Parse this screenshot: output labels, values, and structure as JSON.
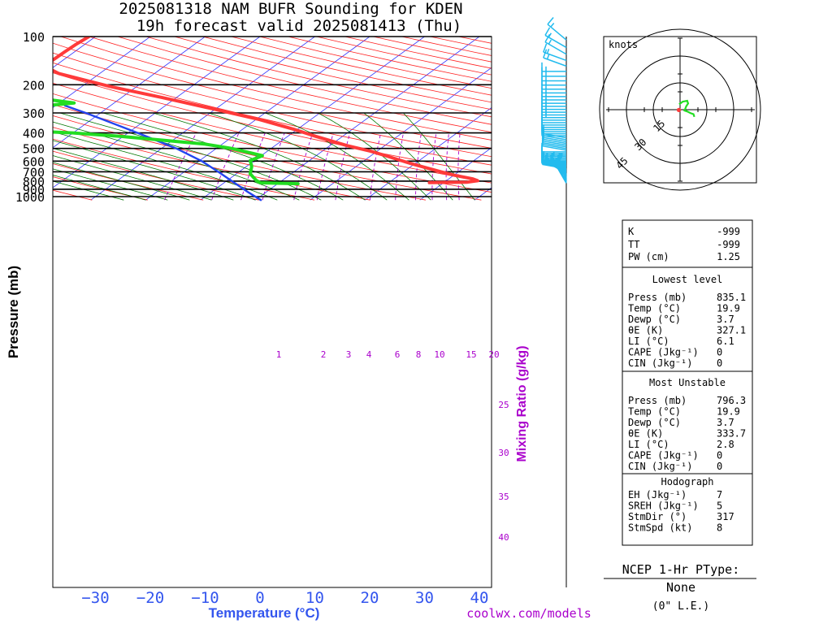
{
  "title_line1": "2025081318 NAM BUFR Sounding for KDEN",
  "title_line2": "19h forecast valid 2025081413 (Thu)",
  "footer_url": "coolwx.com/models",
  "colors": {
    "temperature": "#ff3a3a",
    "dewpoint": "#22dd22",
    "isotherm": "#3333ff",
    "dry_adiabat": "#ff2222",
    "moist_adiabat": "#007700",
    "mixing_ratio": "#aa00cc",
    "parcel": "#2244ee",
    "wind": "#22bbee",
    "axis_label": "#3355ee"
  },
  "chart_data": {
    "type": "skew-t",
    "ylabel": "Pressure (mb)",
    "xlabel": "Temperature (°C)",
    "mixing_ratio_label": "Mixing Ratio (g/kg)",
    "pressure_ticks": [
      100,
      200,
      300,
      400,
      500,
      600,
      700,
      800,
      900,
      1000
    ],
    "temperature_ticks": [
      -30,
      -20,
      -10,
      0,
      10,
      20,
      30,
      40
    ],
    "xlim": [
      -38,
      42
    ],
    "ylim": [
      1050,
      100
    ],
    "mixing_ratio_values": [
      1,
      2,
      3,
      4,
      6,
      8,
      10,
      15,
      20,
      25,
      30,
      35,
      40
    ],
    "temperature_profile": [
      {
        "p": 818,
        "t": 27.4
      },
      {
        "p": 812,
        "t": 34.2
      },
      {
        "p": 795,
        "t": 35.7
      },
      {
        "p": 775,
        "t": 34.4
      },
      {
        "p": 735,
        "t": 30.1
      },
      {
        "p": 700,
        "t": 26.8
      },
      {
        "p": 620,
        "t": 19.1
      },
      {
        "p": 560,
        "t": 13.2
      },
      {
        "p": 520,
        "t": 8.8
      },
      {
        "p": 480,
        "t": 3.1
      },
      {
        "p": 420,
        "t": -4.9
      },
      {
        "p": 380,
        "t": -10.6
      },
      {
        "p": 330,
        "t": -19.4
      },
      {
        "p": 280,
        "t": -31.3
      },
      {
        "p": 240,
        "t": -42.7
      },
      {
        "p": 205,
        "t": -54.9
      },
      {
        "p": 170,
        "t": -67.5
      },
      {
        "p": 155,
        "t": -71.4
      },
      {
        "p": 140,
        "t": -71.9
      },
      {
        "p": 125,
        "t": -71.8
      },
      {
        "p": 112,
        "t": -71.6
      },
      {
        "p": 100,
        "t": -71.2
      }
    ],
    "dewpoint_profile": [
      {
        "p": 830,
        "t": 3.7
      },
      {
        "p": 820,
        "t": -3.4
      },
      {
        "p": 790,
        "t": -4.8
      },
      {
        "p": 720,
        "t": -7.5
      },
      {
        "p": 650,
        "t": -9.0
      },
      {
        "p": 595,
        "t": -10.8
      },
      {
        "p": 555,
        "t": -9.8
      },
      {
        "p": 500,
        "t": -17.2
      },
      {
        "p": 470,
        "t": -23.1
      },
      {
        "p": 420,
        "t": -40.6
      },
      {
        "p": 400,
        "t": -50.0
      },
      {
        "p": 370,
        "t": -74.0
      },
      {
        "p": 345,
        "t": -57.6
      },
      {
        "p": 300,
        "t": -61.0
      },
      {
        "p": 275,
        "t": -63.5
      },
      {
        "p": 260,
        "t": -57.3
      },
      {
        "p": 235,
        "t": -68.9
      },
      {
        "p": 220,
        "t": -72.4
      },
      {
        "p": 200,
        "t": -73.6
      },
      {
        "p": 172,
        "t": -85.7
      },
      {
        "p": 155,
        "t": -87.0
      },
      {
        "p": 132,
        "t": -88.4
      }
    ],
    "parcel_profile": [
      {
        "p": 1050,
        "t": 1.0
      },
      {
        "p": 940,
        "t": -3.2
      },
      {
        "p": 800,
        "t": -9.0
      },
      {
        "p": 700,
        "t": -13.8
      },
      {
        "p": 600,
        "t": -19.5
      },
      {
        "p": 500,
        "t": -27.3
      },
      {
        "p": 400,
        "t": -38.2
      },
      {
        "p": 300,
        "t": -52.7
      },
      {
        "p": 270,
        "t": -58.3
      }
    ],
    "wind_profile_sampled_kt": [
      {
        "p": 820,
        "dir": 330,
        "spd": 10
      },
      {
        "p": 780,
        "dir": 340,
        "spd": 5
      },
      {
        "p": 740,
        "dir": 320,
        "spd": 5
      },
      {
        "p": 700,
        "dir": 300,
        "spd": 5
      },
      {
        "p": 650,
        "dir": 280,
        "spd": 10
      },
      {
        "p": 600,
        "dir": 270,
        "spd": 10
      },
      {
        "p": 550,
        "dir": 270,
        "spd": 10
      },
      {
        "p": 500,
        "dir": 280,
        "spd": 10
      },
      {
        "p": 450,
        "dir": 280,
        "spd": 10
      },
      {
        "p": 400,
        "dir": 270,
        "spd": 10
      },
      {
        "p": 350,
        "dir": 270,
        "spd": 10
      },
      {
        "p": 300,
        "dir": 270,
        "spd": 15
      },
      {
        "p": 250,
        "dir": 270,
        "spd": 15
      },
      {
        "p": 200,
        "dir": 270,
        "spd": 15
      },
      {
        "p": 170,
        "dir": 270,
        "spd": 15
      },
      {
        "p": 150,
        "dir": 290,
        "spd": 15
      },
      {
        "p": 130,
        "dir": 300,
        "spd": 15
      },
      {
        "p": 115,
        "dir": 300,
        "spd": 15
      },
      {
        "p": 105,
        "dir": 310,
        "spd": 15
      }
    ]
  },
  "hodograph": {
    "unit_label": "knots",
    "ring_labels": [
      "15",
      "30",
      "45"
    ],
    "trace_kt": [
      [
        -1,
        6
      ],
      [
        3,
        9
      ],
      [
        8,
        10
      ],
      [
        9,
        7
      ],
      [
        7,
        4
      ],
      [
        5,
        -1
      ],
      [
        8,
        -2
      ],
      [
        12,
        -4
      ],
      [
        15,
        -5
      ],
      [
        16,
        -8
      ]
    ],
    "storm_motion": [
      -5,
      -4
    ]
  },
  "indices": {
    "k_label": "K",
    "k_value": "-999",
    "tt_label": "TT",
    "tt_value": "-999",
    "pw_label": "PW (cm)",
    "pw_value": "1.25",
    "lowest_title": "Lowest level",
    "lowest": [
      {
        "label": "Press (mb)",
        "value": "835.1"
      },
      {
        "label": "Temp (°C)",
        "value": "19.9"
      },
      {
        "label": "Dewp (°C)",
        "value": "3.7"
      },
      {
        "label": "θE (K)",
        "value": "327.1"
      },
      {
        "label": "LI (°C)",
        "value": "6.1"
      },
      {
        "label": "CAPE (Jkg⁻¹)",
        "value": "0"
      },
      {
        "label": "CIN (Jkg⁻¹)",
        "value": "0"
      }
    ],
    "unstable_title": "Most Unstable",
    "unstable": [
      {
        "label": "Press (mb)",
        "value": "796.3"
      },
      {
        "label": "Temp (°C)",
        "value": "19.9"
      },
      {
        "label": "Dewp (°C)",
        "value": "3.7"
      },
      {
        "label": "θE (K)",
        "value": "333.7"
      },
      {
        "label": "LI (°C)",
        "value": "2.8"
      },
      {
        "label": "CAPE (Jkg⁻¹)",
        "value": "0"
      },
      {
        "label": "CIN (Jkg⁻¹)",
        "value": "0"
      }
    ],
    "hodo_title": "Hodograph",
    "hodo": [
      {
        "label": "EH (Jkg⁻¹)",
        "value": "7"
      },
      {
        "label": "SREH (Jkg⁻¹)",
        "value": "5"
      },
      {
        "label": "StmDir (°)",
        "value": "317"
      },
      {
        "label": "StmSpd (kt)",
        "value": "8"
      }
    ]
  },
  "ptype": {
    "title": "NCEP 1-Hr PType:",
    "value": "None",
    "snow": "(0\" L.E.)"
  }
}
